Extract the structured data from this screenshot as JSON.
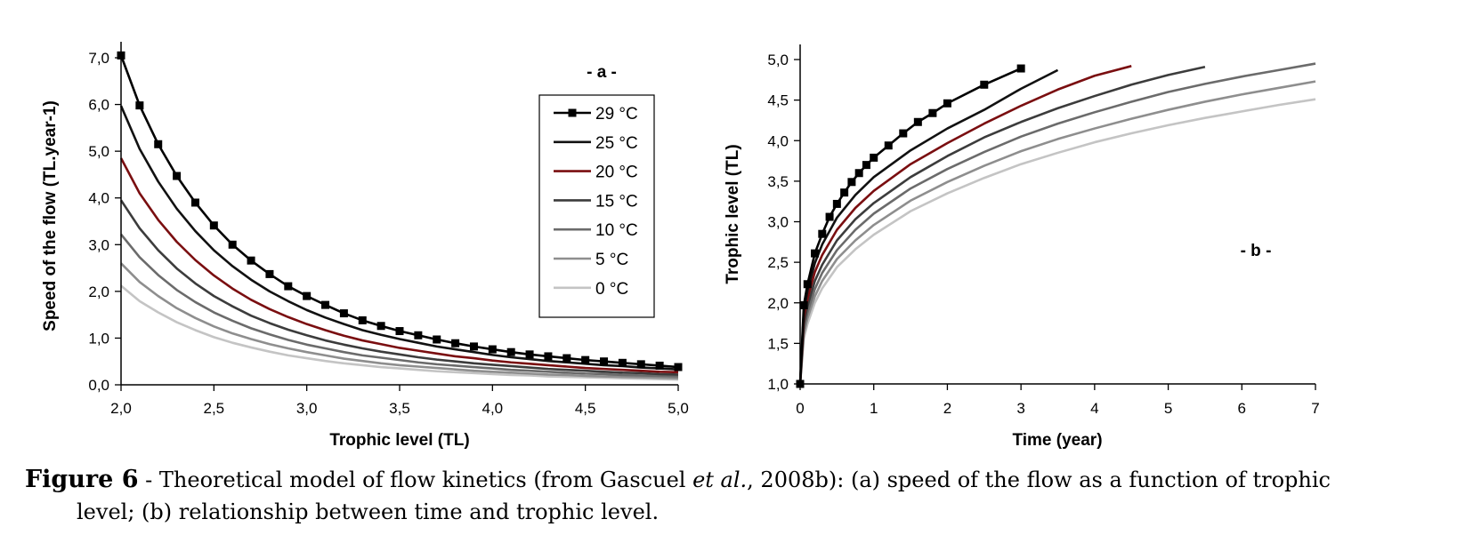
{
  "chart_data": [
    {
      "type": "line",
      "panel_label": "- a -",
      "xlabel": "Trophic level (TL)",
      "ylabel": "Speed of the flow (TL.year-1)",
      "xlim": [
        2.0,
        5.0
      ],
      "ylim": [
        0.0,
        7.0
      ],
      "x_ticks": [
        "2,0",
        "2,5",
        "3,0",
        "3,5",
        "4,0",
        "4,5",
        "5,0"
      ],
      "y_ticks": [
        "0,0",
        "1,0",
        "2,0",
        "3,0",
        "4,0",
        "5,0",
        "6,0",
        "7,0"
      ],
      "legend_position": "top-right",
      "x": [
        2.0,
        2.1,
        2.2,
        2.3,
        2.4,
        2.5,
        2.6,
        2.7,
        2.8,
        2.9,
        3.0,
        3.1,
        3.2,
        3.3,
        3.4,
        3.5,
        3.6,
        3.7,
        3.8,
        3.9,
        4.0,
        4.1,
        4.2,
        4.3,
        4.4,
        4.5,
        4.6,
        4.7,
        4.8,
        4.9,
        5.0
      ],
      "series": [
        {
          "name": "29 °C",
          "color": "#000000",
          "marker": "square",
          "values": [
            7.05,
            5.98,
            5.15,
            4.47,
            3.9,
            3.41,
            3.0,
            2.66,
            2.37,
            2.11,
            1.9,
            1.71,
            1.53,
            1.38,
            1.26,
            1.15,
            1.06,
            0.97,
            0.89,
            0.82,
            0.76,
            0.7,
            0.65,
            0.61,
            0.57,
            0.53,
            0.5,
            0.47,
            0.44,
            0.41,
            0.38
          ]
        },
        {
          "name": "25 °C",
          "color": "#111111",
          "marker": "none",
          "values": [
            5.97,
            5.05,
            4.35,
            3.77,
            3.29,
            2.88,
            2.54,
            2.25,
            2.0,
            1.79,
            1.6,
            1.44,
            1.3,
            1.17,
            1.07,
            0.98,
            0.9,
            0.82,
            0.76,
            0.7,
            0.64,
            0.59,
            0.55,
            0.51,
            0.48,
            0.45,
            0.42,
            0.4,
            0.37,
            0.35,
            0.33
          ]
        },
        {
          "name": "20 °C",
          "color": "#7a0e10",
          "marker": "none",
          "values": [
            4.85,
            4.1,
            3.53,
            3.06,
            2.67,
            2.34,
            2.06,
            1.82,
            1.62,
            1.45,
            1.3,
            1.17,
            1.05,
            0.95,
            0.87,
            0.79,
            0.73,
            0.67,
            0.61,
            0.57,
            0.52,
            0.48,
            0.45,
            0.42,
            0.39,
            0.36,
            0.34,
            0.32,
            0.3,
            0.28,
            0.27
          ]
        },
        {
          "name": "15 °C",
          "color": "#3c3c3c",
          "marker": "none",
          "values": [
            3.95,
            3.35,
            2.88,
            2.49,
            2.17,
            1.9,
            1.68,
            1.48,
            1.32,
            1.18,
            1.06,
            0.95,
            0.86,
            0.78,
            0.71,
            0.65,
            0.59,
            0.54,
            0.5,
            0.46,
            0.43,
            0.4,
            0.37,
            0.34,
            0.32,
            0.3,
            0.28,
            0.26,
            0.25,
            0.23,
            0.22
          ]
        },
        {
          "name": "10 °C",
          "color": "#6b6b6b",
          "marker": "none",
          "values": [
            3.22,
            2.73,
            2.35,
            2.03,
            1.77,
            1.55,
            1.37,
            1.21,
            1.08,
            0.96,
            0.86,
            0.78,
            0.7,
            0.63,
            0.58,
            0.53,
            0.48,
            0.44,
            0.41,
            0.38,
            0.35,
            0.32,
            0.3,
            0.28,
            0.26,
            0.24,
            0.23,
            0.21,
            0.2,
            0.19,
            0.18
          ]
        },
        {
          "name": "5 °C",
          "color": "#8e8e8e",
          "marker": "none",
          "values": [
            2.6,
            2.2,
            1.9,
            1.64,
            1.43,
            1.25,
            1.1,
            0.98,
            0.87,
            0.78,
            0.7,
            0.63,
            0.56,
            0.51,
            0.46,
            0.42,
            0.39,
            0.36,
            0.33,
            0.3,
            0.28,
            0.26,
            0.24,
            0.22,
            0.21,
            0.19,
            0.18,
            0.17,
            0.16,
            0.15,
            0.14
          ]
        },
        {
          "name": "0 °C",
          "color": "#c4c4c4",
          "marker": "none",
          "values": [
            2.12,
            1.79,
            1.55,
            1.34,
            1.17,
            1.02,
            0.9,
            0.8,
            0.71,
            0.63,
            0.57,
            0.51,
            0.46,
            0.42,
            0.38,
            0.35,
            0.32,
            0.29,
            0.27,
            0.25,
            0.23,
            0.21,
            0.2,
            0.18,
            0.17,
            0.16,
            0.15,
            0.14,
            0.13,
            0.12,
            0.11
          ]
        }
      ]
    },
    {
      "type": "line",
      "panel_label": "- b -",
      "xlabel": "Time (year)",
      "ylabel": "Trophic level (TL)",
      "xlim": [
        0,
        7
      ],
      "ylim": [
        1.0,
        5.0
      ],
      "x_ticks": [
        "0",
        "1",
        "2",
        "3",
        "4",
        "5",
        "6",
        "7"
      ],
      "y_ticks": [
        "1,0",
        "1,5",
        "2,0",
        "2,5",
        "3,0",
        "3,5",
        "4,0",
        "4,5",
        "5,0"
      ],
      "series": [
        {
          "name": "29 °C",
          "color": "#000000",
          "marker": "square",
          "x": [
            0,
            0.05,
            0.1,
            0.2,
            0.3,
            0.4,
            0.5,
            0.6,
            0.7,
            0.8,
            0.9,
            1.0,
            1.2,
            1.4,
            1.6,
            1.8,
            2.0,
            2.5,
            3.0
          ],
          "y": [
            1.0,
            1.97,
            2.23,
            2.61,
            2.85,
            3.06,
            3.22,
            3.36,
            3.49,
            3.6,
            3.7,
            3.79,
            3.94,
            4.09,
            4.23,
            4.34,
            4.46,
            4.69,
            4.89
          ]
        },
        {
          "name": "25 °C",
          "color": "#111111",
          "marker": "none",
          "x": [
            0,
            0.05,
            0.1,
            0.2,
            0.3,
            0.5,
            0.75,
            1.0,
            1.5,
            2.0,
            2.5,
            3.0,
            3.5
          ],
          "y": [
            1.0,
            1.9,
            2.15,
            2.49,
            2.72,
            3.05,
            3.33,
            3.55,
            3.88,
            4.15,
            4.38,
            4.64,
            4.87
          ]
        },
        {
          "name": "20 °C",
          "color": "#7a0e10",
          "marker": "none",
          "x": [
            0,
            0.05,
            0.1,
            0.2,
            0.3,
            0.5,
            0.75,
            1.0,
            1.5,
            2.0,
            2.5,
            3.0,
            3.5,
            4.0,
            4.5
          ],
          "y": [
            1.0,
            1.82,
            2.05,
            2.38,
            2.59,
            2.9,
            3.17,
            3.38,
            3.71,
            3.97,
            4.21,
            4.43,
            4.63,
            4.8,
            4.92
          ]
        },
        {
          "name": "15 °C",
          "color": "#3c3c3c",
          "marker": "none",
          "x": [
            0,
            0.05,
            0.1,
            0.2,
            0.3,
            0.5,
            0.75,
            1.0,
            1.5,
            2.0,
            2.5,
            3.0,
            3.5,
            4.0,
            4.5,
            5.0,
            5.5
          ],
          "y": [
            1.0,
            1.74,
            1.96,
            2.27,
            2.47,
            2.77,
            3.03,
            3.23,
            3.55,
            3.81,
            4.04,
            4.23,
            4.4,
            4.55,
            4.69,
            4.81,
            4.91
          ]
        },
        {
          "name": "10 °C",
          "color": "#6b6b6b",
          "marker": "none",
          "x": [
            0,
            0.05,
            0.1,
            0.2,
            0.3,
            0.5,
            0.75,
            1.0,
            1.5,
            2.0,
            2.5,
            3.0,
            3.5,
            4.0,
            4.5,
            5.0,
            5.5,
            6.0,
            6.5,
            7.0
          ],
          "y": [
            1.0,
            1.67,
            1.88,
            2.17,
            2.37,
            2.65,
            2.9,
            3.1,
            3.41,
            3.65,
            3.86,
            4.05,
            4.21,
            4.35,
            4.48,
            4.6,
            4.7,
            4.79,
            4.87,
            4.95
          ]
        },
        {
          "name": "5 °C",
          "color": "#8e8e8e",
          "marker": "none",
          "x": [
            0,
            0.05,
            0.1,
            0.2,
            0.3,
            0.5,
            0.75,
            1.0,
            1.5,
            2.0,
            2.5,
            3.0,
            3.5,
            4.0,
            4.5,
            5.0,
            5.5,
            6.0,
            6.5,
            7.0
          ],
          "y": [
            1.0,
            1.61,
            1.81,
            2.08,
            2.27,
            2.54,
            2.77,
            2.96,
            3.26,
            3.49,
            3.69,
            3.87,
            4.02,
            4.15,
            4.27,
            4.38,
            4.48,
            4.57,
            4.65,
            4.73
          ]
        },
        {
          "name": "0 °C",
          "color": "#c4c4c4",
          "marker": "none",
          "x": [
            0,
            0.05,
            0.1,
            0.2,
            0.3,
            0.5,
            0.75,
            1.0,
            1.5,
            2.0,
            2.5,
            3.0,
            3.5,
            4.0,
            4.5,
            5.0,
            5.5,
            6.0,
            6.5,
            7.0
          ],
          "y": [
            1.0,
            1.56,
            1.74,
            2.0,
            2.18,
            2.44,
            2.66,
            2.84,
            3.13,
            3.35,
            3.54,
            3.71,
            3.85,
            3.98,
            4.09,
            4.19,
            4.28,
            4.36,
            4.44,
            4.51
          ]
        }
      ]
    }
  ],
  "caption": {
    "label": "Figure 6",
    "text_before_italic": " - Theoretical model of flow kinetics (from Gascuel ",
    "italic": "et al.",
    "text_after_italic": ", 2008b): (a) speed of the flow as a function of trophic",
    "line2": "level; (b) relationship between time and trophic level."
  }
}
